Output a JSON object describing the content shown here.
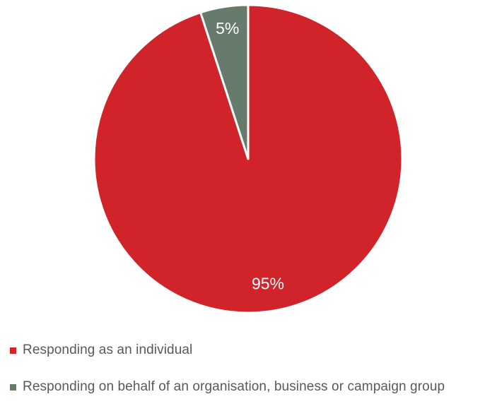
{
  "chart_data": {
    "type": "pie",
    "title": "",
    "slices": [
      {
        "label": "Responding as an individual",
        "value": 95,
        "data_label": "95%",
        "color": "#d0232a"
      },
      {
        "label": "Responding on behalf of an organisation, business or campaign group",
        "value": 5,
        "data_label": "5%",
        "color": "#667b6c"
      }
    ],
    "legend_position": "bottom-left",
    "start_angle": "12 o'clock",
    "direction": "clockwise"
  }
}
